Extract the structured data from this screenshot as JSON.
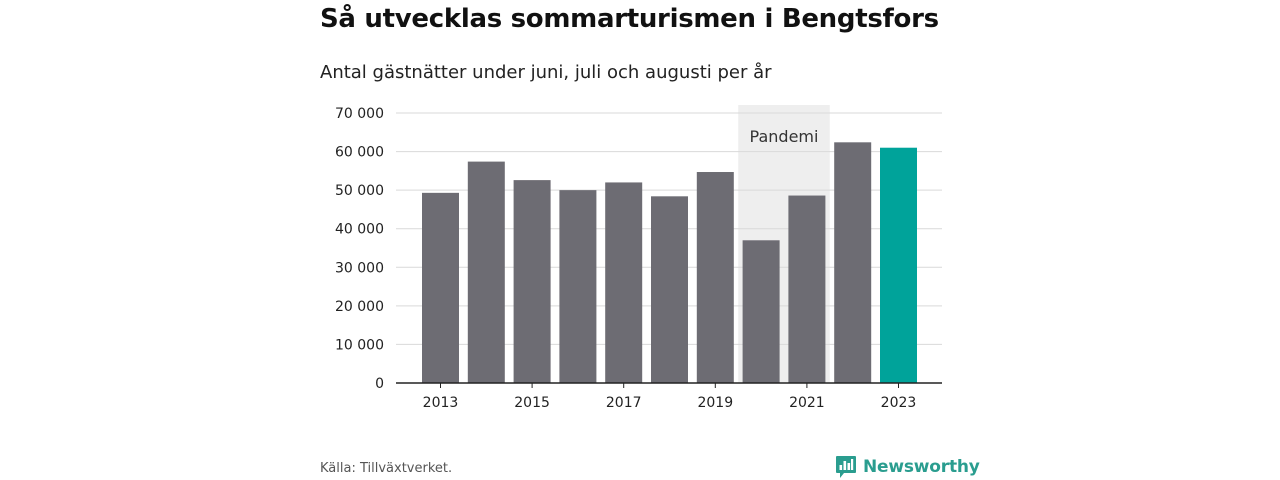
{
  "title": "Så utvecklas sommarturismen i Bengtsfors",
  "subtitle": "Antal gästnätter under juni, juli och augusti per år",
  "source": "Källa: Tillväxtverket.",
  "brand": {
    "name": "Newsworthy",
    "icon": "bar-chart-logo-icon"
  },
  "colors": {
    "bar": "#6d6c73",
    "highlight": "#00a39a",
    "band": "#eeeeee",
    "grid": "#d9d9d9",
    "axis": "#222222",
    "brand": "#2a9d8f"
  },
  "chart_data": {
    "type": "bar",
    "categories": [
      "2013",
      "2014",
      "2015",
      "2016",
      "2017",
      "2018",
      "2019",
      "2020",
      "2021",
      "2022",
      "2023"
    ],
    "values": [
      49300,
      57400,
      52600,
      50000,
      52000,
      48400,
      54700,
      37000,
      48600,
      62400,
      61000
    ],
    "highlight_category": "2023",
    "xticks": [
      "2013",
      "2015",
      "2017",
      "2019",
      "2021",
      "2023"
    ],
    "yticks": [
      0,
      10000,
      20000,
      30000,
      40000,
      50000,
      60000,
      70000
    ],
    "ytick_labels": [
      "0",
      "10 000",
      "20 000",
      "30 000",
      "40 000",
      "50 000",
      "60 000",
      "70 000"
    ],
    "ylim": [
      0,
      70000
    ],
    "grid": true,
    "annotation": {
      "label": "Pandemi",
      "from": "2020",
      "to": "2021"
    }
  }
}
